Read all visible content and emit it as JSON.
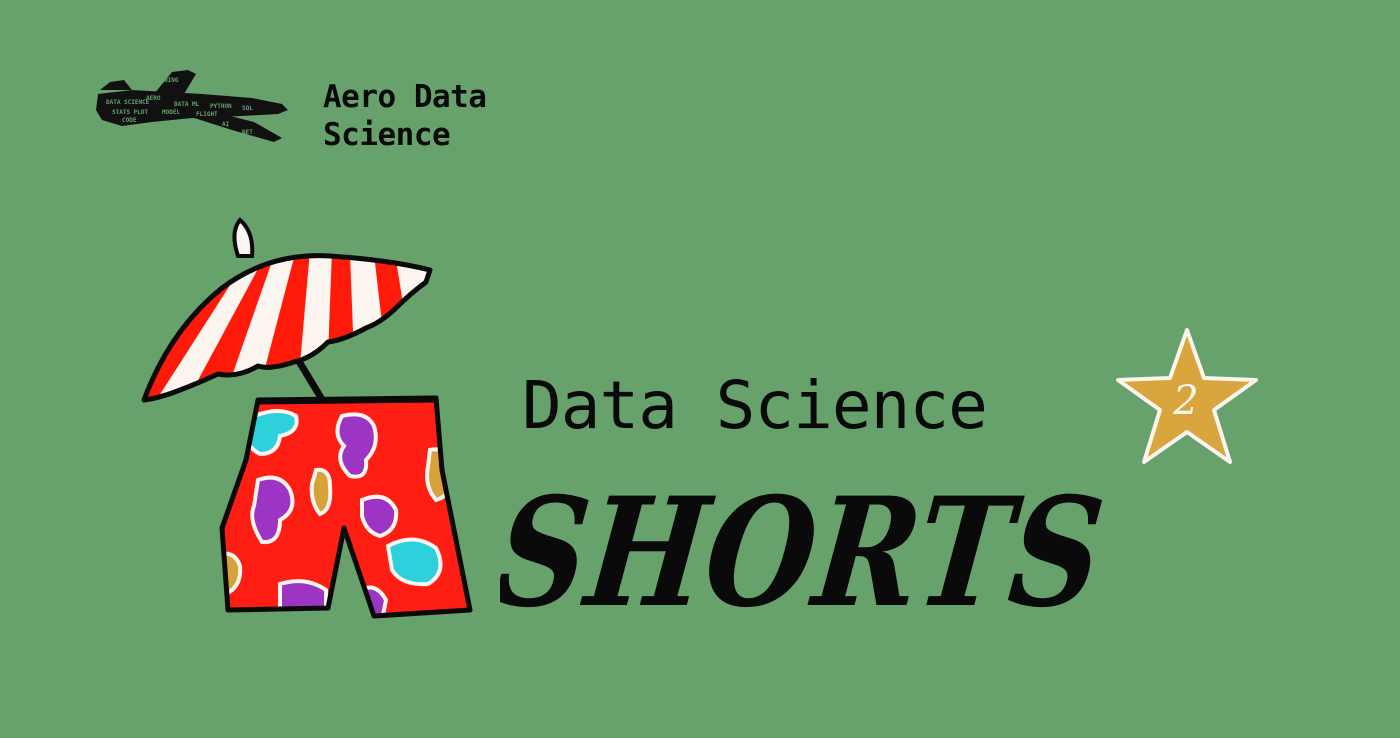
{
  "brand": {
    "line1": "Aero Data",
    "line2": "Science",
    "logo_icon": "airplane-word-cloud-icon"
  },
  "headline": "Data Science",
  "wordmark": "SHORTS",
  "badge": {
    "number": "2",
    "icon": "star-icon"
  },
  "illustration": {
    "umbrella_icon": "beach-umbrella-icon",
    "shorts_icon": "swim-shorts-icon"
  },
  "colors": {
    "background": "#67a16b",
    "umbrella_red": "#ff1a0a",
    "umbrella_white": "#fbf4ef",
    "shorts_red": "#ff1e14",
    "blob_purple": "#9c34c4",
    "blob_cyan": "#2ed0dc",
    "blob_gold": "#d8a23a",
    "star_gold": "#d9a63e",
    "ink": "#0a0a0a"
  }
}
